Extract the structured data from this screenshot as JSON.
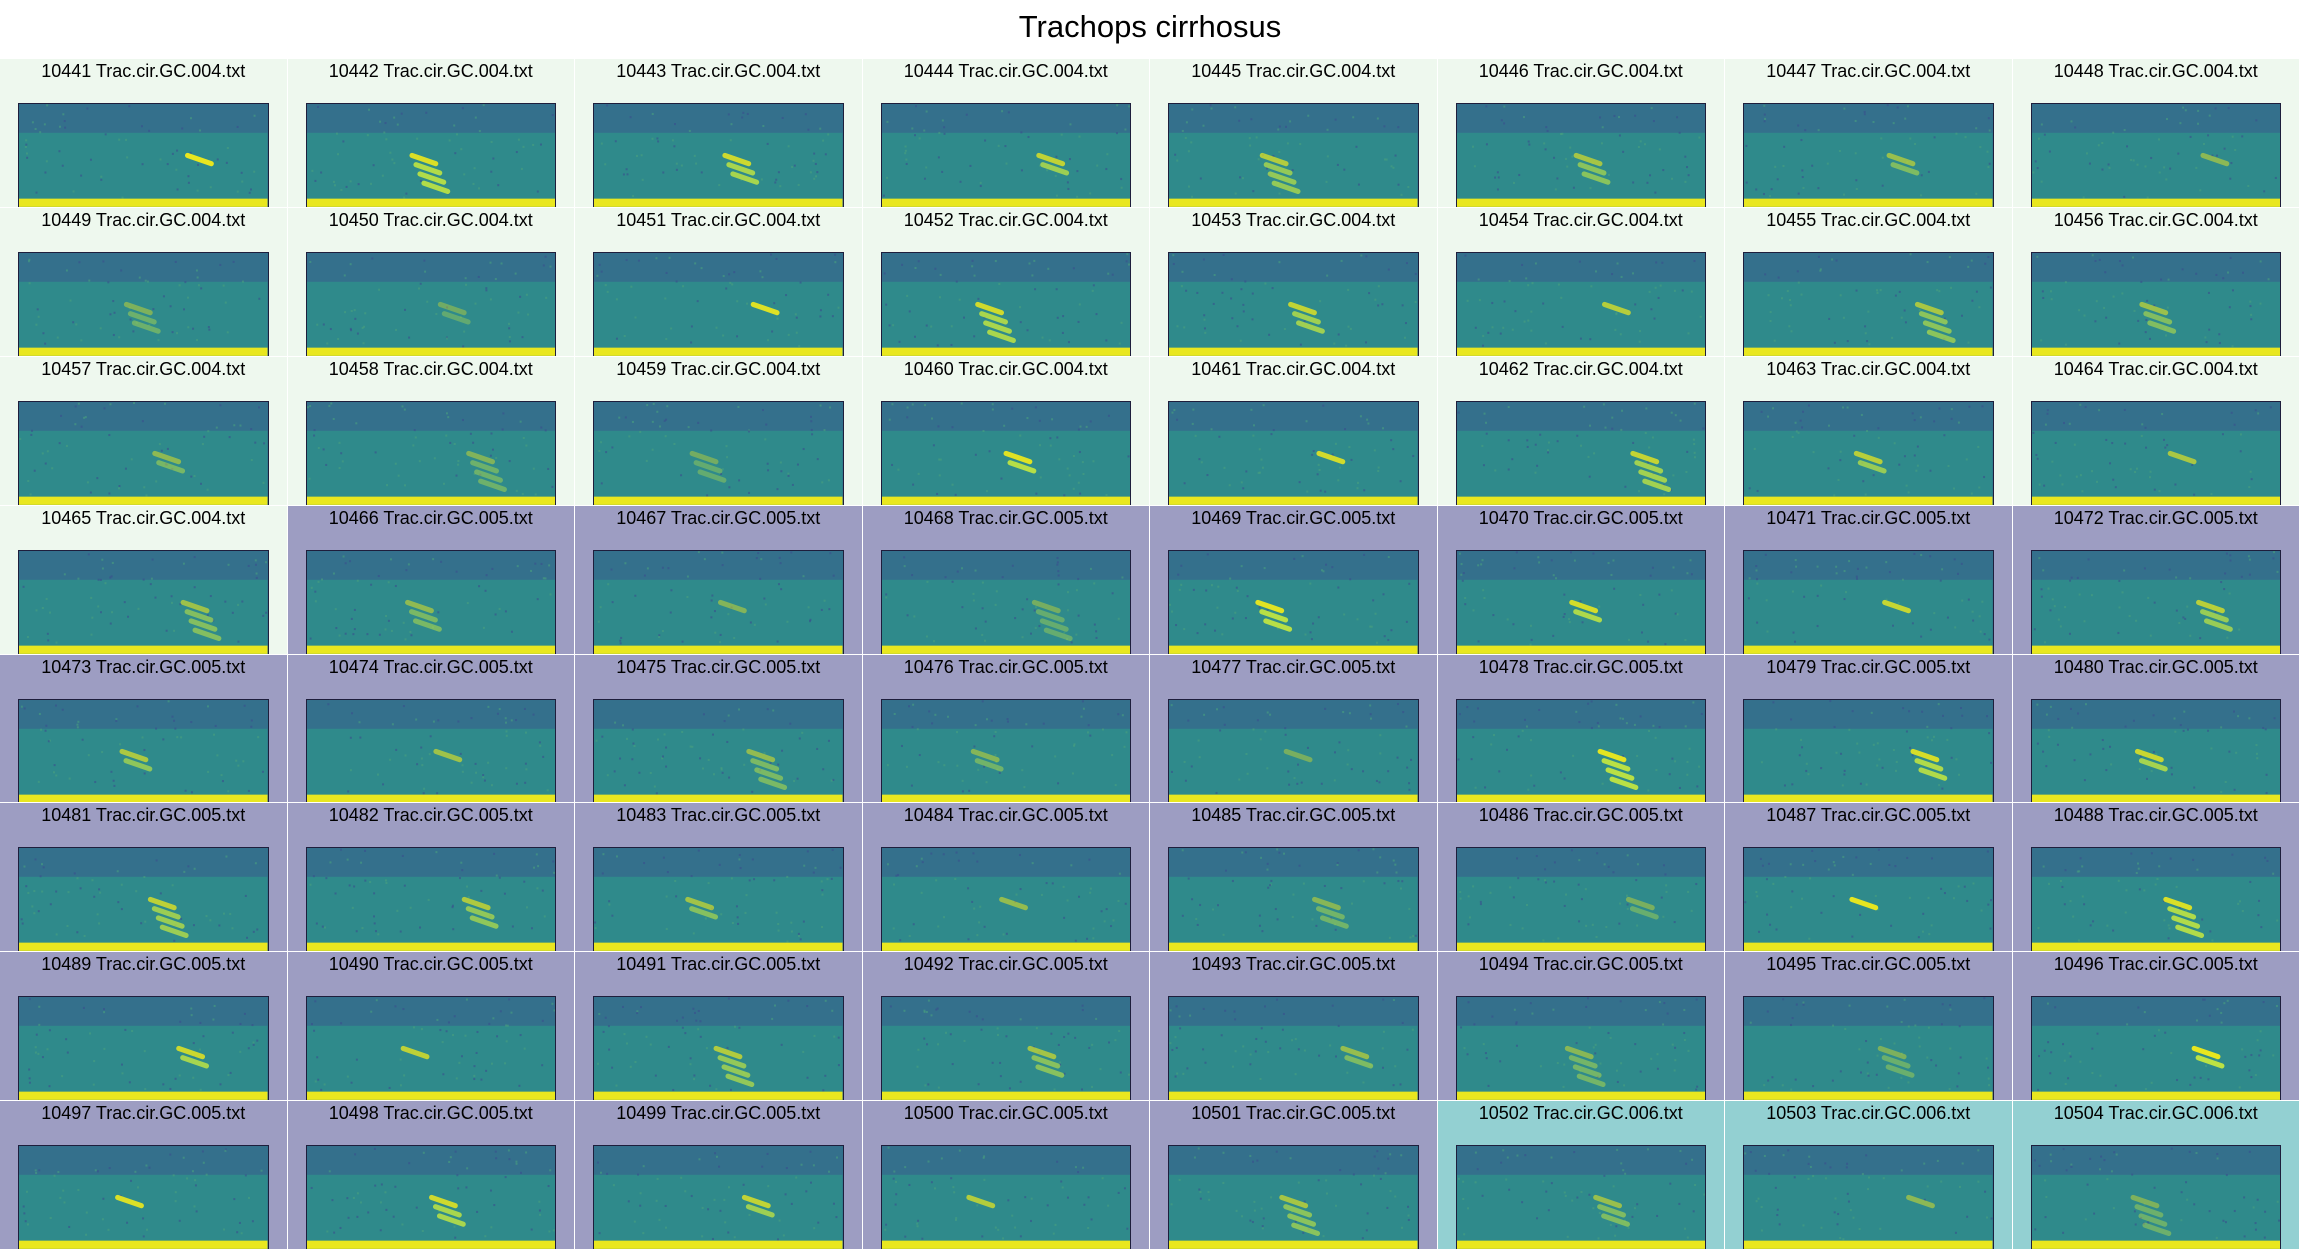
{
  "title": "Trachops cirrhosus",
  "group_colors": {
    "004": "#eef8ee",
    "005": "#9d9dc2",
    "006": "#93d0d2"
  },
  "spectrogram_colors": {
    "low": "#3b4f8e",
    "mid": "#2f8a8b",
    "high": "#bde344",
    "peak": "#e9e71f"
  },
  "cells": [
    {
      "label": "10441 Trac.cir.GC.004.txt",
      "group": "004"
    },
    {
      "label": "10442 Trac.cir.GC.004.txt",
      "group": "004"
    },
    {
      "label": "10443 Trac.cir.GC.004.txt",
      "group": "004"
    },
    {
      "label": "10444 Trac.cir.GC.004.txt",
      "group": "004"
    },
    {
      "label": "10445 Trac.cir.GC.004.txt",
      "group": "004"
    },
    {
      "label": "10446 Trac.cir.GC.004.txt",
      "group": "004"
    },
    {
      "label": "10447 Trac.cir.GC.004.txt",
      "group": "004"
    },
    {
      "label": "10448 Trac.cir.GC.004.txt",
      "group": "004"
    },
    {
      "label": "10449 Trac.cir.GC.004.txt",
      "group": "004"
    },
    {
      "label": "10450 Trac.cir.GC.004.txt",
      "group": "004"
    },
    {
      "label": "10451 Trac.cir.GC.004.txt",
      "group": "004"
    },
    {
      "label": "10452 Trac.cir.GC.004.txt",
      "group": "004"
    },
    {
      "label": "10453 Trac.cir.GC.004.txt",
      "group": "004"
    },
    {
      "label": "10454 Trac.cir.GC.004.txt",
      "group": "004"
    },
    {
      "label": "10455 Trac.cir.GC.004.txt",
      "group": "004"
    },
    {
      "label": "10456 Trac.cir.GC.004.txt",
      "group": "004"
    },
    {
      "label": "10457 Trac.cir.GC.004.txt",
      "group": "004"
    },
    {
      "label": "10458 Trac.cir.GC.004.txt",
      "group": "004"
    },
    {
      "label": "10459 Trac.cir.GC.004.txt",
      "group": "004"
    },
    {
      "label": "10460 Trac.cir.GC.004.txt",
      "group": "004"
    },
    {
      "label": "10461 Trac.cir.GC.004.txt",
      "group": "004"
    },
    {
      "label": "10462 Trac.cir.GC.004.txt",
      "group": "004"
    },
    {
      "label": "10463 Trac.cir.GC.004.txt",
      "group": "004"
    },
    {
      "label": "10464 Trac.cir.GC.004.txt",
      "group": "004"
    },
    {
      "label": "10465 Trac.cir.GC.004.txt",
      "group": "004"
    },
    {
      "label": "10466 Trac.cir.GC.005.txt",
      "group": "005"
    },
    {
      "label": "10467 Trac.cir.GC.005.txt",
      "group": "005"
    },
    {
      "label": "10468 Trac.cir.GC.005.txt",
      "group": "005"
    },
    {
      "label": "10469 Trac.cir.GC.005.txt",
      "group": "005"
    },
    {
      "label": "10470 Trac.cir.GC.005.txt",
      "group": "005"
    },
    {
      "label": "10471 Trac.cir.GC.005.txt",
      "group": "005"
    },
    {
      "label": "10472 Trac.cir.GC.005.txt",
      "group": "005"
    },
    {
      "label": "10473 Trac.cir.GC.005.txt",
      "group": "005"
    },
    {
      "label": "10474 Trac.cir.GC.005.txt",
      "group": "005"
    },
    {
      "label": "10475 Trac.cir.GC.005.txt",
      "group": "005"
    },
    {
      "label": "10476 Trac.cir.GC.005.txt",
      "group": "005"
    },
    {
      "label": "10477 Trac.cir.GC.005.txt",
      "group": "005"
    },
    {
      "label": "10478 Trac.cir.GC.005.txt",
      "group": "005"
    },
    {
      "label": "10479 Trac.cir.GC.005.txt",
      "group": "005"
    },
    {
      "label": "10480 Trac.cir.GC.005.txt",
      "group": "005"
    },
    {
      "label": "10481 Trac.cir.GC.005.txt",
      "group": "005"
    },
    {
      "label": "10482 Trac.cir.GC.005.txt",
      "group": "005"
    },
    {
      "label": "10483 Trac.cir.GC.005.txt",
      "group": "005"
    },
    {
      "label": "10484 Trac.cir.GC.005.txt",
      "group": "005"
    },
    {
      "label": "10485 Trac.cir.GC.005.txt",
      "group": "005"
    },
    {
      "label": "10486 Trac.cir.GC.005.txt",
      "group": "005"
    },
    {
      "label": "10487 Trac.cir.GC.005.txt",
      "group": "005"
    },
    {
      "label": "10488 Trac.cir.GC.005.txt",
      "group": "005"
    },
    {
      "label": "10489 Trac.cir.GC.005.txt",
      "group": "005"
    },
    {
      "label": "10490 Trac.cir.GC.005.txt",
      "group": "005"
    },
    {
      "label": "10491 Trac.cir.GC.005.txt",
      "group": "005"
    },
    {
      "label": "10492 Trac.cir.GC.005.txt",
      "group": "005"
    },
    {
      "label": "10493 Trac.cir.GC.005.txt",
      "group": "005"
    },
    {
      "label": "10494 Trac.cir.GC.005.txt",
      "group": "005"
    },
    {
      "label": "10495 Trac.cir.GC.005.txt",
      "group": "005"
    },
    {
      "label": "10496 Trac.cir.GC.005.txt",
      "group": "005"
    },
    {
      "label": "10497 Trac.cir.GC.005.txt",
      "group": "005"
    },
    {
      "label": "10498 Trac.cir.GC.005.txt",
      "group": "005"
    },
    {
      "label": "10499 Trac.cir.GC.005.txt",
      "group": "005"
    },
    {
      "label": "10500 Trac.cir.GC.005.txt",
      "group": "005"
    },
    {
      "label": "10501 Trac.cir.GC.005.txt",
      "group": "005"
    },
    {
      "label": "10502 Trac.cir.GC.006.txt",
      "group": "006"
    },
    {
      "label": "10503 Trac.cir.GC.006.txt",
      "group": "006"
    },
    {
      "label": "10504 Trac.cir.GC.006.txt",
      "group": "006"
    }
  ]
}
